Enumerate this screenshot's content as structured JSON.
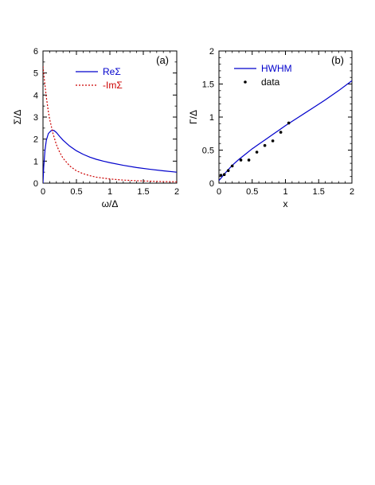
{
  "chart_data": [
    {
      "type": "line",
      "panel_label": "(a)",
      "xlabel": "ω/Δ",
      "ylabel": "Σ/Δ",
      "xlim": [
        0,
        2
      ],
      "ylim": [
        0,
        6
      ],
      "xticks": [
        "0",
        "0.5",
        "1",
        "1.5",
        "2"
      ],
      "yticks": [
        "0",
        "1",
        "2",
        "3",
        "4",
        "5",
        "6"
      ],
      "legend_position": "top-right",
      "series": [
        {
          "name": "ReΣ",
          "color": "#0000cc",
          "style": "solid",
          "x": [
            0,
            0.01,
            0.03,
            0.05,
            0.08,
            0.12,
            0.16,
            0.2,
            0.25,
            0.3,
            0.4,
            0.5,
            0.6,
            0.7,
            0.8,
            0.9,
            1.0,
            1.2,
            1.4,
            1.6,
            1.8,
            2.0
          ],
          "y": [
            0,
            0.7,
            1.5,
            1.95,
            2.25,
            2.38,
            2.4,
            2.3,
            2.12,
            1.95,
            1.68,
            1.47,
            1.31,
            1.18,
            1.08,
            1.0,
            0.93,
            0.81,
            0.71,
            0.63,
            0.56,
            0.5
          ]
        },
        {
          "name": "-ImΣ",
          "color": "#cc0000",
          "style": "dotted",
          "x": [
            0,
            0.02,
            0.05,
            0.08,
            0.1,
            0.15,
            0.2,
            0.25,
            0.3,
            0.4,
            0.5,
            0.6,
            0.7,
            0.8,
            1.0,
            1.2,
            1.4,
            1.6,
            1.8,
            2.0
          ],
          "y": [
            5.3,
            4.7,
            3.9,
            3.25,
            2.9,
            2.25,
            1.75,
            1.4,
            1.13,
            0.78,
            0.56,
            0.43,
            0.34,
            0.27,
            0.19,
            0.14,
            0.11,
            0.09,
            0.07,
            0.06
          ]
        }
      ]
    },
    {
      "type": "line",
      "panel_label": "(b)",
      "xlabel": "x",
      "ylabel": "Γ/Δ",
      "xlim": [
        0,
        2
      ],
      "ylim": [
        0,
        2
      ],
      "xticks": [
        "0",
        "0.5",
        "1",
        "1.5",
        "2"
      ],
      "yticks": [
        "0",
        "0.5",
        "1",
        "1.5",
        "2"
      ],
      "legend_position": "top-right",
      "series": [
        {
          "name": "HWHM",
          "color": "#0000cc",
          "style": "solid",
          "x": [
            0,
            0.05,
            0.1,
            0.2,
            0.3,
            0.4,
            0.5,
            0.6,
            0.7,
            0.8,
            0.9,
            1.0,
            1.2,
            1.4,
            1.6,
            1.8,
            2.0
          ],
          "y": [
            0.04,
            0.1,
            0.16,
            0.27,
            0.36,
            0.44,
            0.52,
            0.59,
            0.66,
            0.73,
            0.8,
            0.87,
            1.0,
            1.13,
            1.26,
            1.4,
            1.55
          ]
        },
        {
          "name": "data",
          "color": "#000000",
          "style": "points",
          "x": [
            0.03,
            0.08,
            0.14,
            0.2,
            0.33,
            0.45,
            0.57,
            0.69,
            0.81,
            0.93,
            1.05
          ],
          "y": [
            0.12,
            0.13,
            0.19,
            0.26,
            0.35,
            0.35,
            0.47,
            0.57,
            0.64,
            0.77,
            0.91
          ]
        }
      ]
    }
  ]
}
